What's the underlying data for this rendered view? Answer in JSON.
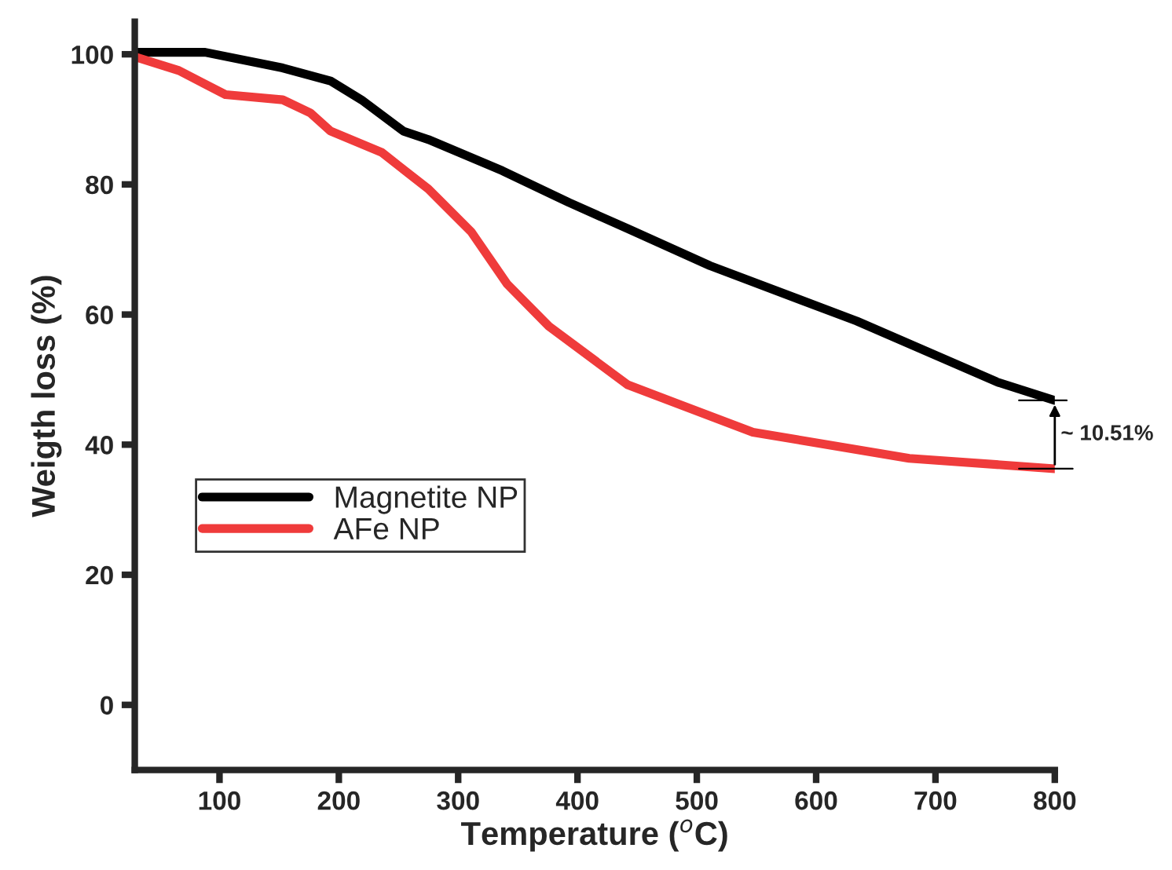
{
  "chart_data": {
    "type": "line",
    "xlabel": "Temperature ($^{o}$C)",
    "ylabel": "Weigth loss (%)",
    "xlim": [
      29,
      800
    ],
    "xticks": [
      100,
      200,
      300,
      400,
      500,
      600,
      700,
      800
    ],
    "ylim": [
      -10,
      105
    ],
    "yticks": [
      0,
      20,
      40,
      60,
      80,
      100
    ],
    "grid": false,
    "legend": "left",
    "line_style": "solid",
    "marker": "none",
    "annotations": [
      "~ 10.51%"
    ],
    "series": [
      {
        "name": "Magnetite NP",
        "color": "#000000",
        "x": [
          31,
          88,
          153,
          193,
          219,
          254,
          275,
          337,
          393,
          442,
          511,
          634,
          752,
          800
        ],
        "values": [
          100.3,
          100.3,
          97.9,
          95.9,
          93.0,
          88.2,
          86.9,
          82.1,
          77.2,
          73.2,
          67.5,
          59.0,
          49.6,
          46.8
        ]
      },
      {
        "name": "AFe NP",
        "color": "#ef3b3b",
        "x": [
          31,
          66,
          105,
          153,
          176,
          193,
          236,
          275,
          311,
          341,
          376,
          442,
          547,
          678,
          800
        ],
        "values": [
          99.5,
          97.5,
          93.8,
          93.0,
          91.0,
          88.2,
          84.9,
          79.3,
          72.7,
          64.7,
          58.2,
          49.2,
          41.9,
          37.9,
          36.3
        ]
      }
    ]
  }
}
